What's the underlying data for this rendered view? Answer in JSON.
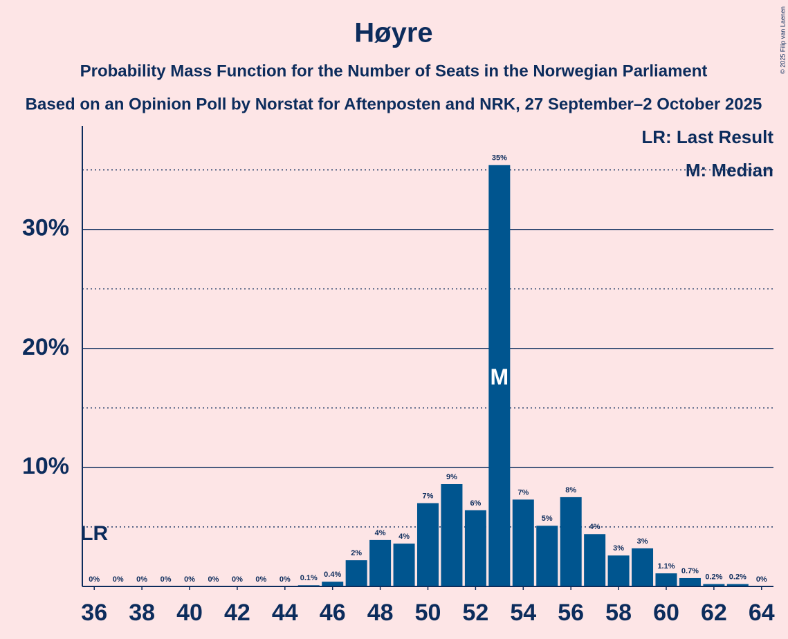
{
  "chart_data": {
    "type": "bar",
    "title": "Høyre",
    "subtitle": "Probability Mass Function for the Number of Seats in the Norwegian Parliament",
    "subtitle2": "Based on an Opinion Poll by Norstat for Aftenposten and NRK, 27 September–2 October 2025",
    "copyright": "© 2025 Filip van Laenen",
    "x": [
      36,
      37,
      38,
      39,
      40,
      41,
      42,
      43,
      44,
      45,
      46,
      47,
      48,
      49,
      50,
      51,
      52,
      53,
      54,
      55,
      56,
      57,
      58,
      59,
      60,
      61,
      62,
      63,
      64
    ],
    "values": [
      0,
      0,
      0,
      0,
      0,
      0,
      0,
      0,
      0,
      0.1,
      0.4,
      2.2,
      3.9,
      3.6,
      7.0,
      8.6,
      6.4,
      35.4,
      7.3,
      5.1,
      7.5,
      4.4,
      2.6,
      3.2,
      1.1,
      0.7,
      0.2,
      0.2,
      0
    ],
    "value_labels": [
      "0%",
      "0%",
      "0%",
      "0%",
      "0%",
      "0%",
      "0%",
      "0%",
      "0%",
      "0.1%",
      "0.4%",
      "2%",
      "4%",
      "4%",
      "7%",
      "9%",
      "6%",
      "35%",
      "7%",
      "5%",
      "8%",
      "4%",
      "3%",
      "3%",
      "1.1%",
      "0.7%",
      "0.2%",
      "0.2%",
      "0%"
    ],
    "color": "#00558f",
    "xlim": [
      35.5,
      64.5
    ],
    "xticks": [
      36,
      38,
      40,
      42,
      44,
      46,
      48,
      50,
      52,
      54,
      56,
      58,
      60,
      62,
      64
    ],
    "ylim": [
      0,
      38.7
    ],
    "yticks": [
      {
        "value": 10,
        "label": "10%"
      },
      {
        "value": 20,
        "label": "20%"
      },
      {
        "value": 30,
        "label": "30%"
      }
    ],
    "minor_yticks": [
      5,
      15,
      25,
      35
    ],
    "grid": true,
    "annotations": [
      {
        "label": "LR",
        "x": 36
      },
      {
        "label": "M",
        "x": 53
      }
    ],
    "legend": [
      "LR: Last Result",
      "M: Median"
    ],
    "legend_position": "upper right"
  }
}
